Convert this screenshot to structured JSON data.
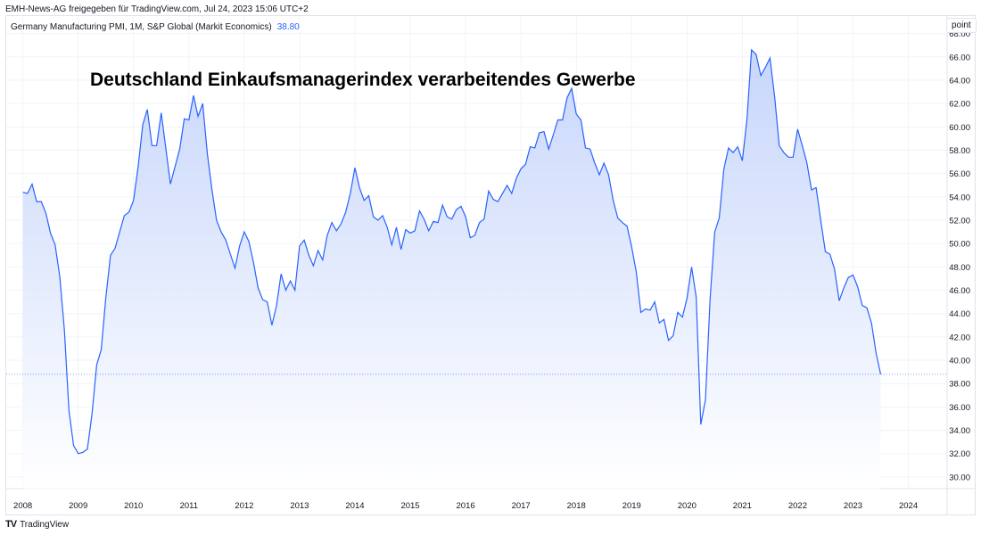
{
  "header": {
    "shared_by": "EMH-News-AG freigegeben für TradingView.com, Jul 24, 2023 15:06 UTC+2"
  },
  "legend": {
    "series_label": "Germany Manufacturing PMI, 1M, S&P Global (Markit Economics)",
    "last_value": "38.80"
  },
  "unit_button": "point",
  "footer": {
    "brand": "TradingView",
    "logo_mark": "TV"
  },
  "colors": {
    "line": "#2962ff",
    "fill_top": "#c7d6fb",
    "fill_bottom": "#ffffff",
    "grid": "#f0f3fa"
  },
  "chart_data": {
    "type": "area",
    "title": "Deutschland Einkaufsmanagerindex verarbeitendes Gewerbe",
    "xlabel": "",
    "ylabel": "",
    "start": "2008-01",
    "frequency": "monthly",
    "ylim": [
      29,
      69.5
    ],
    "xlim": [
      2007.7,
      2024.7
    ],
    "x_ticks": [
      "2008",
      "2009",
      "2010",
      "2011",
      "2012",
      "2013",
      "2014",
      "2015",
      "2016",
      "2017",
      "2018",
      "2019",
      "2020",
      "2021",
      "2022",
      "2023",
      "2024"
    ],
    "y_ticks": [
      "30.00",
      "32.00",
      "34.00",
      "36.00",
      "38.00",
      "40.00",
      "42.00",
      "44.00",
      "46.00",
      "48.00",
      "50.00",
      "52.00",
      "54.00",
      "56.00",
      "58.00",
      "60.00",
      "62.00",
      "64.00",
      "66.00",
      "68.00"
    ],
    "last_value_line": 38.8,
    "values": [
      54.4,
      54.3,
      55.1,
      53.6,
      53.6,
      52.6,
      50.9,
      49.9,
      47.2,
      42.6,
      35.7,
      32.7,
      32.0,
      32.1,
      32.4,
      35.4,
      39.6,
      40.9,
      45.4,
      49.0,
      49.6,
      51.0,
      52.4,
      52.7,
      53.7,
      56.6,
      60.2,
      61.5,
      58.4,
      58.4,
      61.2,
      58.2,
      55.1,
      56.6,
      58.1,
      60.7,
      60.6,
      62.7,
      60.9,
      62.0,
      57.7,
      54.6,
      52.0,
      51.0,
      50.3,
      49.1,
      47.9,
      49.8,
      51.0,
      50.2,
      48.4,
      46.2,
      45.2,
      45.0,
      43.0,
      44.7,
      47.4,
      46.0,
      46.8,
      46.0,
      49.8,
      50.3,
      49.0,
      48.1,
      49.4,
      48.6,
      50.7,
      51.8,
      51.1,
      51.7,
      52.7,
      54.3,
      56.5,
      54.8,
      53.7,
      54.1,
      52.3,
      52.0,
      52.4,
      51.4,
      49.9,
      51.4,
      49.5,
      51.2,
      50.9,
      51.1,
      52.8,
      52.1,
      51.1,
      51.9,
      51.8,
      53.3,
      52.3,
      52.1,
      52.9,
      53.2,
      52.3,
      50.5,
      50.7,
      51.8,
      52.1,
      54.5,
      53.8,
      53.6,
      54.3,
      55.0,
      54.3,
      55.6,
      56.4,
      56.8,
      58.3,
      58.2,
      59.5,
      59.6,
      58.1,
      59.3,
      60.6,
      60.6,
      62.5,
      63.3,
      61.1,
      60.6,
      58.2,
      58.1,
      56.9,
      55.9,
      56.9,
      55.9,
      53.7,
      52.2,
      51.8,
      51.5,
      49.7,
      47.6,
      44.1,
      44.4,
      44.3,
      45.0,
      43.2,
      43.5,
      41.7,
      42.1,
      44.1,
      43.7,
      45.3,
      48.0,
      45.4,
      34.5,
      36.6,
      45.2,
      51.0,
      52.2,
      56.4,
      58.2,
      57.8,
      58.3,
      57.1,
      60.7,
      66.6,
      66.2,
      64.4,
      65.1,
      65.9,
      62.6,
      58.4,
      57.8,
      57.4,
      57.4,
      59.8,
      58.4,
      56.9,
      54.6,
      54.8,
      52.0,
      49.3,
      49.1,
      47.8,
      45.1,
      46.2,
      47.1,
      47.3,
      46.3,
      44.7,
      44.5,
      43.2,
      40.6,
      38.8
    ]
  }
}
